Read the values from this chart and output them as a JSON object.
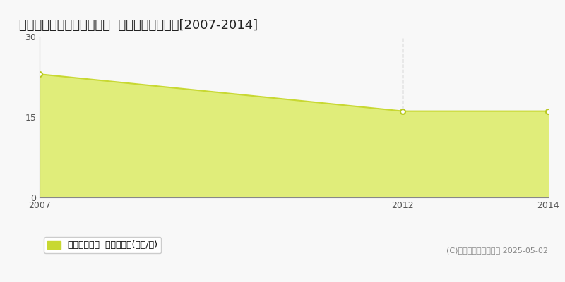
{
  "title": "仙台市若林区六丁の目北町  収益物件価格推移[2007-2014]",
  "years": [
    2007,
    2012,
    2014
  ],
  "values": [
    23.0,
    16.1,
    16.1
  ],
  "line_color": "#c8d832",
  "fill_color": "#e0ed7a",
  "marker_color": "#ffffff",
  "marker_edge_color": "#b8c820",
  "ylim": [
    0,
    30
  ],
  "yticks": [
    0,
    15,
    30
  ],
  "xlim": [
    2007,
    2014
  ],
  "xticks": [
    2007,
    2012,
    2014
  ],
  "vline_x": 2012,
  "vline_color": "#aaaaaa",
  "grid_color": "#bbbbbb",
  "background_color": "#f8f8f8",
  "plot_bg_color": "#f8f8f8",
  "legend_label": "収益物件価格  平均坪単価(万円/坪)",
  "legend_marker_color": "#c8d832",
  "copyright_text": "(C)土地価格ドットコム 2025-05-02",
  "title_fontsize": 13,
  "axis_fontsize": 9,
  "legend_fontsize": 9,
  "copyright_fontsize": 8,
  "spine_color": "#888888",
  "tick_color": "#555555"
}
